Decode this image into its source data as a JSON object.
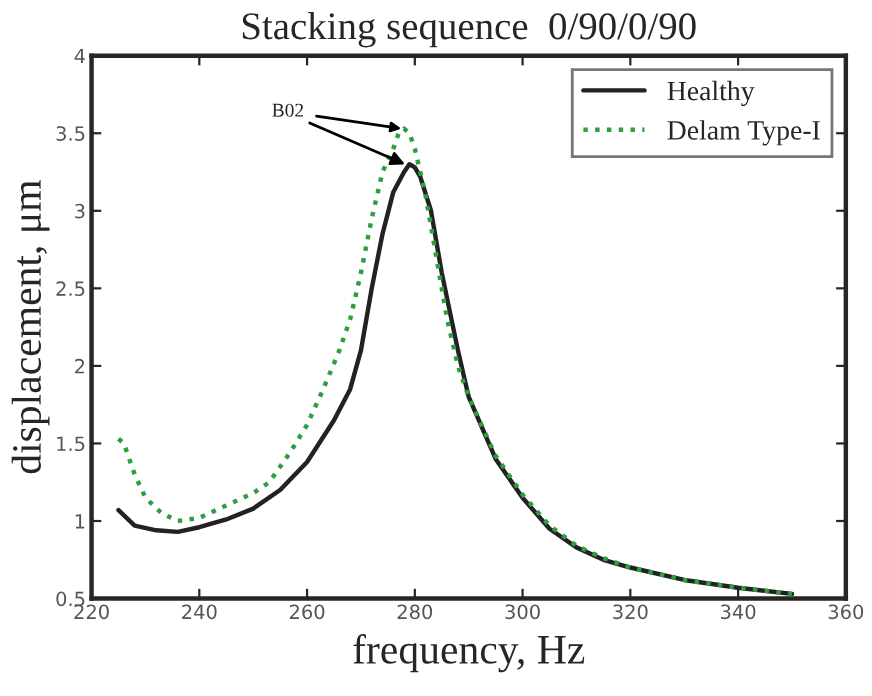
{
  "chart_data": {
    "type": "line",
    "title": "Stacking sequence  0/90/0/90",
    "xlabel": "frequency, Hz",
    "ylabel": "displacement, μm",
    "xlim": [
      220,
      360
    ],
    "xticks": [
      220,
      240,
      260,
      280,
      300,
      320,
      340,
      360
    ],
    "ylim": [
      0.5,
      4
    ],
    "yticks": [
      0.5,
      1,
      1.5,
      2,
      2.5,
      3,
      3.5,
      4
    ],
    "grid": false,
    "legend": "top right",
    "marker": "none",
    "annotations": [
      {
        "text": "B02",
        "x": 277.5,
        "y": 3.53
      }
    ],
    "series": [
      {
        "name": "Healthy",
        "color": "#222222",
        "line_style": "solid",
        "x": [
          225,
          228,
          232,
          236,
          240,
          245,
          250,
          255,
          260,
          265,
          268,
          270,
          272,
          274,
          276,
          278,
          279,
          280,
          281,
          283,
          285,
          288,
          290,
          295,
          300,
          305,
          310,
          315,
          320,
          330,
          340,
          350
        ],
        "values": [
          1.07,
          0.97,
          0.94,
          0.93,
          0.96,
          1.01,
          1.08,
          1.2,
          1.38,
          1.65,
          1.85,
          2.1,
          2.5,
          2.85,
          3.12,
          3.25,
          3.3,
          3.28,
          3.22,
          3.0,
          2.6,
          2.1,
          1.8,
          1.4,
          1.15,
          0.95,
          0.83,
          0.75,
          0.7,
          0.62,
          0.57,
          0.53
        ]
      },
      {
        "name": "Delam Type-I",
        "color": "#2e9e3e",
        "line_style": "dotted",
        "x": [
          225,
          226,
          228,
          230,
          233,
          236,
          240,
          245,
          250,
          253,
          257,
          260,
          263,
          266,
          268,
          270,
          272,
          274,
          276,
          277,
          278,
          279,
          280,
          282,
          284,
          286,
          288,
          290,
          295,
          300,
          305,
          310,
          315,
          320,
          330,
          340,
          350
        ],
        "values": [
          1.53,
          1.5,
          1.3,
          1.15,
          1.05,
          1.0,
          1.02,
          1.1,
          1.18,
          1.25,
          1.45,
          1.62,
          1.85,
          2.1,
          2.3,
          2.6,
          2.95,
          3.25,
          3.4,
          3.5,
          3.53,
          3.5,
          3.4,
          3.1,
          2.7,
          2.3,
          2.0,
          1.8,
          1.42,
          1.17,
          0.97,
          0.84,
          0.76,
          0.7,
          0.62,
          0.57,
          0.53
        ]
      }
    ]
  }
}
